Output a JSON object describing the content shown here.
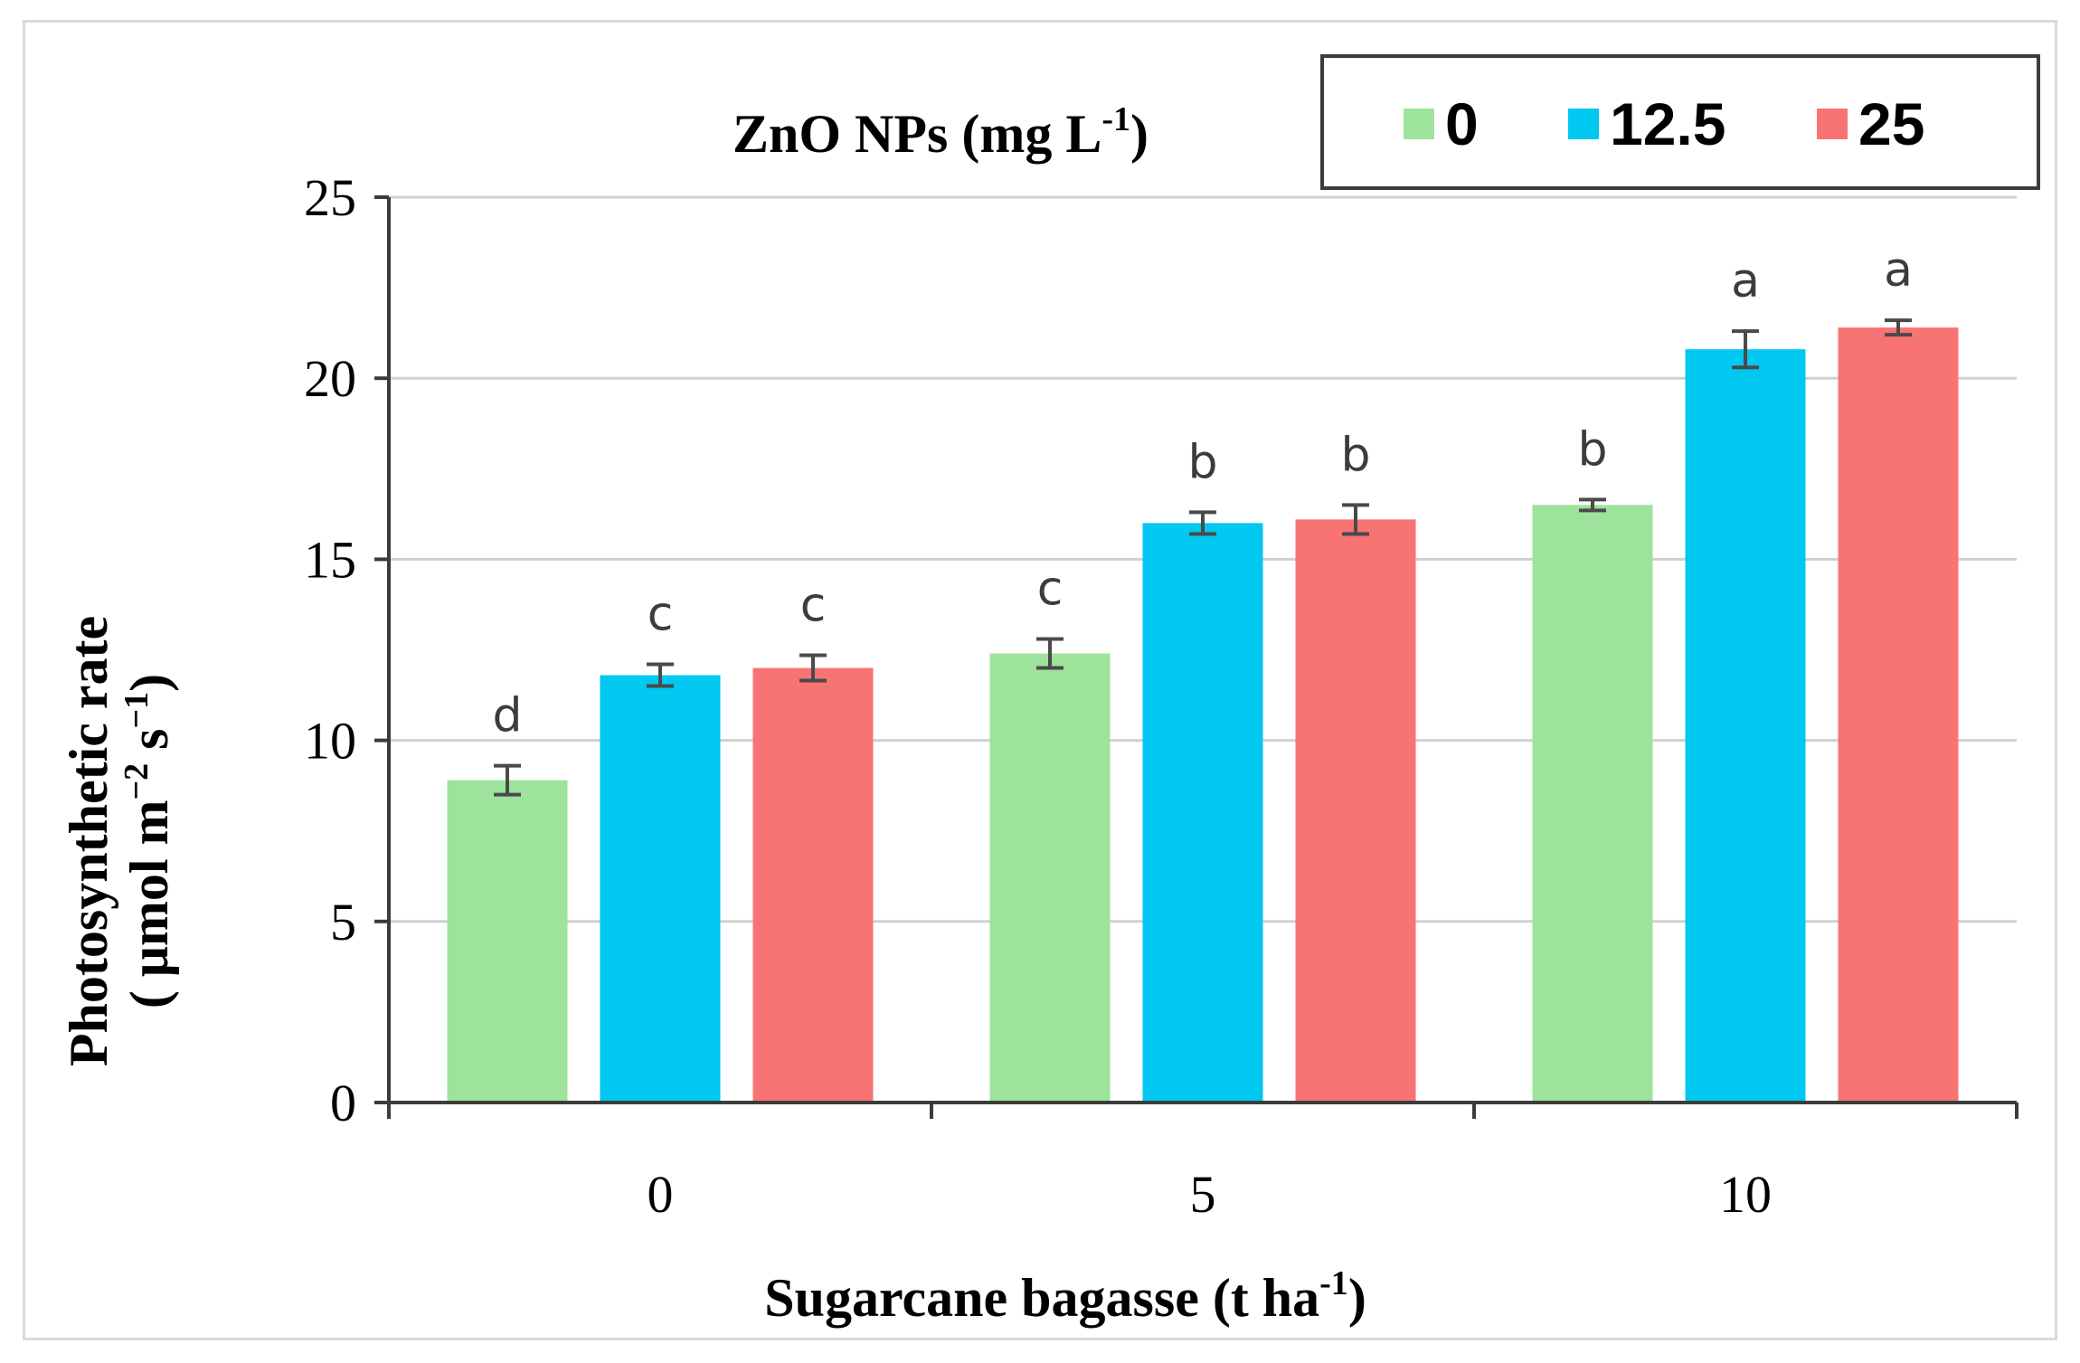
{
  "chart_data": {
    "type": "bar",
    "categories": [
      "0",
      "5",
      "10"
    ],
    "series": [
      {
        "name": "0",
        "color": "#9de39b",
        "values": [
          8.9,
          12.4,
          16.5
        ],
        "errors": [
          0.4,
          0.4,
          0.15
        ],
        "letters": [
          "d",
          "c",
          "b"
        ]
      },
      {
        "name": "12.5",
        "color": "#00c8f0",
        "values": [
          11.8,
          16.0,
          20.8
        ],
        "errors": [
          0.3,
          0.3,
          0.5
        ],
        "letters": [
          "c",
          "b",
          "a"
        ]
      },
      {
        "name": "25",
        "color": "#f87474",
        "values": [
          12.0,
          16.1,
          21.4
        ],
        "errors": [
          0.35,
          0.4,
          0.2
        ],
        "letters": [
          "c",
          "b",
          "a"
        ]
      }
    ],
    "ylim": [
      0,
      25
    ],
    "yticks": [
      0,
      5,
      10,
      15,
      20,
      25
    ],
    "grid": true,
    "legend": {
      "position": "top-right",
      "title_main": "ZnO NPs (mg L",
      "title_sup": "-1",
      "title_end": ")"
    },
    "ylabel": {
      "line1": "Photosynthetic rate",
      "line2_main": "( μmol m",
      "line2_sup1": "−2",
      "line2_mid": " s",
      "line2_sup2": "−1",
      "line2_end": ")"
    },
    "xlabel": {
      "main": "Sugarcane bagasse (t  ha",
      "sup": "-1",
      "end": ")"
    }
  }
}
